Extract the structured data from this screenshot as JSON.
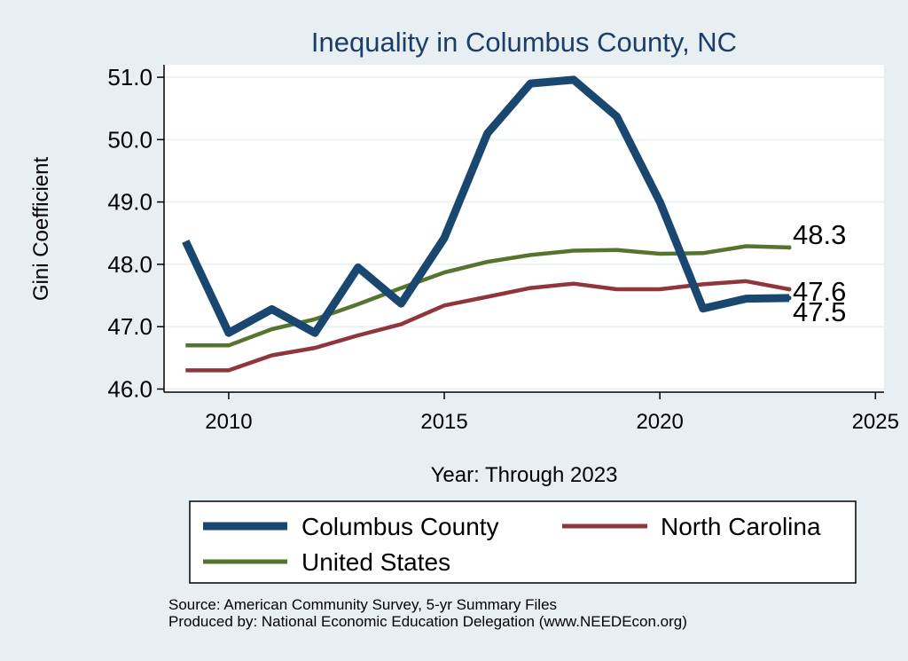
{
  "chart_data": {
    "type": "line",
    "title": "Inequality in Columbus County, NC",
    "xlabel": "Year: Through 2023",
    "ylabel": "Gini Coefficient",
    "xlim": [
      2008.5,
      2025.2
    ],
    "ylim": [
      45.95,
      51.2
    ],
    "xticks": [
      2010,
      2015,
      2020,
      2025
    ],
    "yticks": [
      46.0,
      47.0,
      48.0,
      49.0,
      50.0,
      51.0
    ],
    "grid": true,
    "colors": {
      "title": "#1a3e68",
      "plot_bg": "#ffffff",
      "grid": "#eaf2f3"
    },
    "series": [
      {
        "name": "Columbus County",
        "color": "#1a476f",
        "x": [
          2009,
          2010,
          2011,
          2012,
          2013,
          2014,
          2015,
          2016,
          2017,
          2018,
          2019,
          2020,
          2021,
          2022,
          2023
        ],
        "values": [
          48.37,
          46.9,
          47.28,
          46.9,
          47.95,
          47.37,
          48.42,
          50.1,
          50.9,
          50.96,
          50.37,
          49.0,
          47.29,
          47.45,
          47.46
        ],
        "end_label": "47.5"
      },
      {
        "name": "North Carolina",
        "color": "#90353b",
        "x": [
          2009,
          2010,
          2011,
          2012,
          2013,
          2014,
          2015,
          2016,
          2017,
          2018,
          2019,
          2020,
          2021,
          2022,
          2023
        ],
        "values": [
          46.3,
          46.3,
          46.54,
          46.66,
          46.86,
          47.04,
          47.34,
          47.48,
          47.62,
          47.69,
          47.6,
          47.6,
          47.68,
          47.73,
          47.6
        ],
        "end_label": "47.6"
      },
      {
        "name": "United States",
        "color": "#55752f",
        "x": [
          2009,
          2010,
          2011,
          2012,
          2013,
          2014,
          2015,
          2016,
          2017,
          2018,
          2019,
          2020,
          2021,
          2022,
          2023
        ],
        "values": [
          46.7,
          46.7,
          46.96,
          47.12,
          47.36,
          47.62,
          47.87,
          48.04,
          48.15,
          48.22,
          48.23,
          48.17,
          48.18,
          48.29,
          48.27
        ],
        "end_label": "48.3"
      }
    ]
  },
  "legend": {
    "columbus": "Columbus County",
    "nc": "North Carolina",
    "us": "United States"
  },
  "source": {
    "line1": "Source: American Community Survey, 5-yr Summary Files",
    "line2": "Produced by: National Economic Education Delegation (www.NEEDEcon.org)"
  }
}
